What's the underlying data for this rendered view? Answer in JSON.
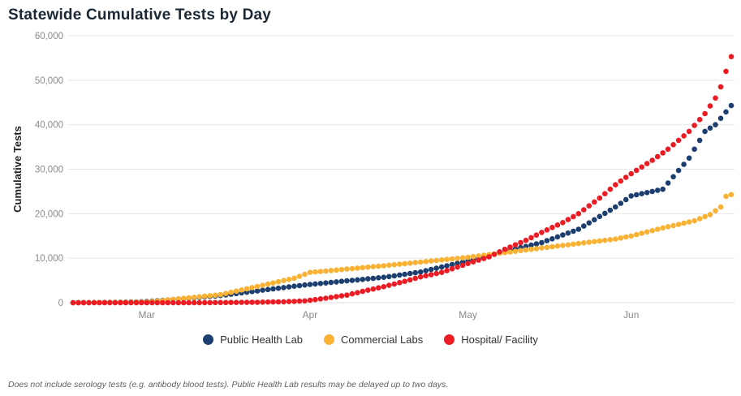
{
  "title": "Statewide Cumulative Tests by Day",
  "footnote": "Does not include serology tests (e.g. antibody blood tests). Public Health Lab results may be delayed up to two days.",
  "chart_data": {
    "type": "scatter",
    "title": "Statewide Cumulative Tests by Day",
    "xlabel": "",
    "ylabel": "Cumulative Tests",
    "ylim": [
      0,
      60000
    ],
    "y_tick_step": 10000,
    "y_tick_labels": [
      "0",
      "10,000",
      "20,000",
      "30,000",
      "40,000",
      "50,000",
      "60,000"
    ],
    "grid": true,
    "legend_position": "bottom",
    "x_unit": "day-index from Feb 15",
    "x_ticks": [
      {
        "day": 14,
        "label": "Mar"
      },
      {
        "day": 45,
        "label": "Apr"
      },
      {
        "day": 75,
        "label": "May"
      },
      {
        "day": 106,
        "label": "Jun"
      }
    ],
    "colors": {
      "public_health_lab": "#1c3f6f",
      "commercial_labs": "#f9b233",
      "hospital_facility": "#ec1c24",
      "grid": "#e7e7e7",
      "axis_text": "#8a8a8a"
    },
    "series": [
      {
        "name": "Public Health Lab",
        "color": "#1c3f6f",
        "values": [
          0,
          10,
          15,
          25,
          35,
          45,
          60,
          75,
          95,
          115,
          135,
          160,
          190,
          220,
          250,
          350,
          450,
          540,
          640,
          730,
          830,
          930,
          1020,
          1120,
          1210,
          1310,
          1410,
          1500,
          1600,
          1750,
          1900,
          2050,
          2200,
          2350,
          2500,
          2650,
          2800,
          2950,
          3100,
          3250,
          3400,
          3550,
          3700,
          3830,
          3970,
          4100,
          4210,
          4330,
          4440,
          4560,
          4670,
          4790,
          4900,
          5010,
          5130,
          5240,
          5360,
          5470,
          5590,
          5700,
          5870,
          6040,
          6210,
          6390,
          6560,
          6730,
          6900,
          7180,
          7460,
          7730,
          8010,
          8290,
          8570,
          8840,
          9120,
          9400,
          9700,
          10000,
          10300,
          10600,
          10900,
          11200,
          11500,
          11790,
          12070,
          12360,
          12640,
          12930,
          13210,
          13500,
          13930,
          14360,
          14790,
          15210,
          15640,
          16070,
          16500,
          17210,
          17930,
          18640,
          19360,
          20070,
          20790,
          21500,
          22330,
          23170,
          24000,
          24250,
          24500,
          24750,
          25000,
          25250,
          25500,
          26900,
          28300,
          29700,
          31100,
          32500,
          34500,
          36500,
          38500,
          39250,
          40000,
          41430,
          42870,
          44300
        ]
      },
      {
        "name": "Commercial Labs",
        "color": "#f9b233",
        "values": [
          0,
          5,
          10,
          15,
          20,
          30,
          40,
          50,
          60,
          75,
          90,
          105,
          120,
          135,
          150,
          270,
          390,
          500,
          620,
          740,
          860,
          980,
          1090,
          1210,
          1330,
          1450,
          1560,
          1680,
          1800,
          2060,
          2330,
          2590,
          2860,
          3120,
          3390,
          3650,
          3910,
          4180,
          4440,
          4710,
          4970,
          5240,
          5500,
          5930,
          6370,
          6800,
          6910,
          7010,
          7120,
          7230,
          7340,
          7440,
          7550,
          7660,
          7760,
          7870,
          7980,
          8090,
          8190,
          8300,
          8420,
          8540,
          8660,
          8780,
          8890,
          9010,
          9130,
          9250,
          9370,
          9490,
          9610,
          9720,
          9840,
          9960,
          10080,
          10200,
          10350,
          10500,
          10650,
          10800,
          10950,
          11100,
          11250,
          11400,
          11550,
          11700,
          11850,
          12000,
          12150,
          12300,
          12440,
          12590,
          12730,
          12870,
          13010,
          13160,
          13300,
          13440,
          13590,
          13730,
          13870,
          14010,
          14160,
          14300,
          14530,
          14770,
          15000,
          15300,
          15600,
          15900,
          16200,
          16500,
          16800,
          17070,
          17330,
          17600,
          17870,
          18130,
          18400,
          18870,
          19330,
          19800,
          20650,
          21500,
          23900,
          24300
        ]
      },
      {
        "name": "Hospital/ Facility",
        "color": "#ec1c24",
        "values": [
          0,
          0,
          0,
          0,
          0,
          0,
          0,
          0,
          0,
          0,
          0,
          0,
          0,
          0,
          0,
          0,
          0,
          0,
          0,
          0,
          0,
          0,
          0,
          0,
          0,
          20,
          25,
          30,
          35,
          40,
          50,
          60,
          70,
          80,
          90,
          100,
          120,
          140,
          160,
          180,
          200,
          250,
          300,
          350,
          400,
          550,
          700,
          850,
          1000,
          1180,
          1350,
          1530,
          1700,
          1980,
          2250,
          2530,
          2800,
          3070,
          3330,
          3600,
          3900,
          4200,
          4500,
          4800,
          5130,
          5470,
          5800,
          6050,
          6300,
          6550,
          6800,
          7200,
          7600,
          8000,
          8400,
          8800,
          9180,
          9550,
          9930,
          10300,
          10870,
          11430,
          12000,
          12500,
          13000,
          13500,
          14000,
          14600,
          15200,
          15800,
          16350,
          16900,
          17450,
          18000,
          18670,
          19330,
          20000,
          20880,
          21750,
          22630,
          23500,
          24500,
          25500,
          26500,
          27330,
          28170,
          29000,
          29750,
          30500,
          31250,
          32000,
          32830,
          33670,
          34500,
          35500,
          36500,
          37500,
          38500,
          39830,
          41170,
          42500,
          44200,
          46000,
          48500,
          52000,
          55300
        ]
      }
    ]
  }
}
